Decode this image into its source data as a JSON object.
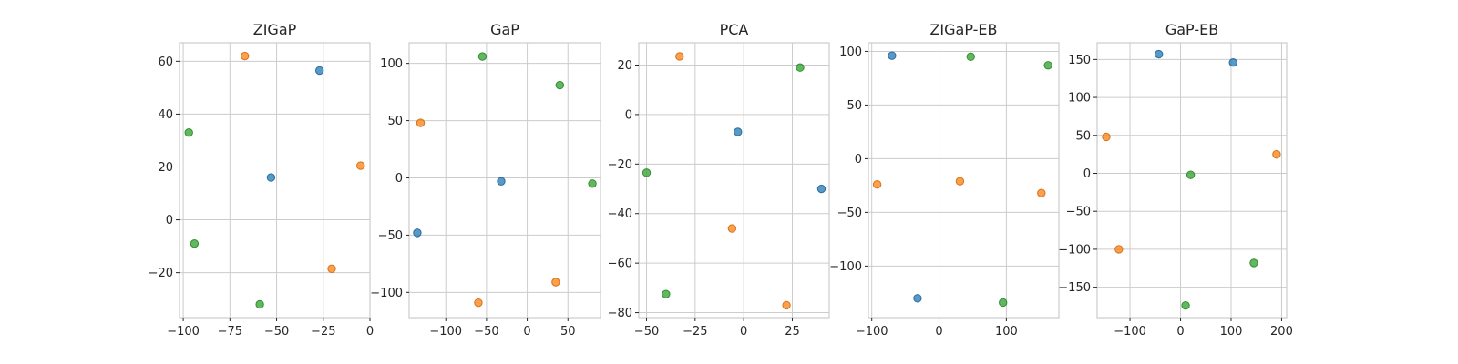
{
  "chart_data": [
    {
      "type": "scatter",
      "title": "ZIGaP",
      "xlabel": "",
      "ylabel": "",
      "xlim": [
        -102,
        0
      ],
      "ylim": [
        -37,
        67
      ],
      "xticks": [
        -100,
        -75,
        -50,
        -25,
        0
      ],
      "yticks": [
        -20,
        0,
        20,
        40,
        60
      ],
      "grid": true,
      "points": [
        {
          "cluster": 0,
          "x": -27,
          "y": 56.5
        },
        {
          "cluster": 0,
          "x": -53,
          "y": 16
        },
        {
          "cluster": 1,
          "x": -67,
          "y": 62
        },
        {
          "cluster": 1,
          "x": -5,
          "y": 20.5
        },
        {
          "cluster": 1,
          "x": -20.5,
          "y": -18.5
        },
        {
          "cluster": 2,
          "x": -97,
          "y": 33
        },
        {
          "cluster": 2,
          "x": -94,
          "y": -9
        },
        {
          "cluster": 2,
          "x": -59,
          "y": -32
        }
      ]
    },
    {
      "type": "scatter",
      "title": "GaP",
      "xlabel": "",
      "ylabel": "",
      "xlim": [
        -145,
        90
      ],
      "ylim": [
        -122,
        118
      ],
      "xticks": [
        -100,
        -50,
        0,
        50
      ],
      "yticks": [
        -100,
        -50,
        0,
        50,
        100
      ],
      "grid": true,
      "points": [
        {
          "cluster": 0,
          "x": -32,
          "y": -3
        },
        {
          "cluster": 0,
          "x": -135,
          "y": -48
        },
        {
          "cluster": 1,
          "x": -131,
          "y": 48
        },
        {
          "cluster": 1,
          "x": 35,
          "y": -91
        },
        {
          "cluster": 1,
          "x": -60,
          "y": -109
        },
        {
          "cluster": 2,
          "x": -55,
          "y": 106
        },
        {
          "cluster": 2,
          "x": 40,
          "y": 81
        },
        {
          "cluster": 2,
          "x": 80,
          "y": -5
        }
      ]
    },
    {
      "type": "scatter",
      "title": "PCA",
      "xlabel": "",
      "ylabel": "",
      "xlim": [
        -54,
        44
      ],
      "ylim": [
        -82,
        29
      ],
      "xticks": [
        -50,
        -25,
        0,
        25
      ],
      "yticks": [
        -80,
        -60,
        -40,
        -20,
        0,
        20
      ],
      "grid": true,
      "points": [
        {
          "cluster": 0,
          "x": -3,
          "y": -7
        },
        {
          "cluster": 0,
          "x": 40,
          "y": -30
        },
        {
          "cluster": 1,
          "x": -33,
          "y": 23.5
        },
        {
          "cluster": 1,
          "x": -6,
          "y": -46
        },
        {
          "cluster": 1,
          "x": 22,
          "y": -77
        },
        {
          "cluster": 2,
          "x": 29,
          "y": 19
        },
        {
          "cluster": 2,
          "x": -50,
          "y": -23.5
        },
        {
          "cluster": 2,
          "x": -40,
          "y": -72.5
        }
      ]
    },
    {
      "type": "scatter",
      "title": "ZIGaP-EB",
      "xlabel": "",
      "ylabel": "",
      "xlim": [
        -105,
        178
      ],
      "ylim": [
        -148,
        108
      ],
      "xticks": [
        -100,
        0,
        100
      ],
      "yticks": [
        -100,
        -50,
        0,
        50,
        100
      ],
      "grid": true,
      "points": [
        {
          "cluster": 0,
          "x": -70,
          "y": 96
        },
        {
          "cluster": 0,
          "x": -32,
          "y": -130
        },
        {
          "cluster": 1,
          "x": -92,
          "y": -24
        },
        {
          "cluster": 1,
          "x": 31,
          "y": -21
        },
        {
          "cluster": 1,
          "x": 152,
          "y": -32
        },
        {
          "cluster": 2,
          "x": 47,
          "y": 95
        },
        {
          "cluster": 2,
          "x": 162,
          "y": 87
        },
        {
          "cluster": 2,
          "x": 95,
          "y": -134
        }
      ]
    },
    {
      "type": "scatter",
      "title": "GaP-EB",
      "xlabel": "",
      "ylabel": "",
      "xlim": [
        -165,
        210
      ],
      "ylim": [
        -190,
        172
      ],
      "xticks": [
        -100,
        0,
        100,
        200
      ],
      "yticks": [
        -150,
        -100,
        -50,
        0,
        50,
        100,
        150
      ],
      "grid": true,
      "points": [
        {
          "cluster": 0,
          "x": -43,
          "y": 157
        },
        {
          "cluster": 0,
          "x": 104,
          "y": 146
        },
        {
          "cluster": 1,
          "x": -147,
          "y": 48
        },
        {
          "cluster": 1,
          "x": 190,
          "y": 25
        },
        {
          "cluster": 1,
          "x": -122,
          "y": -100
        },
        {
          "cluster": 2,
          "x": 20,
          "y": -2
        },
        {
          "cluster": 2,
          "x": 145,
          "y": -118
        },
        {
          "cluster": 2,
          "x": 10,
          "y": -174
        }
      ]
    }
  ],
  "colors": {
    "cluster_fill": [
      "#1f77b4",
      "#ff7f0e",
      "#2ca02c"
    ],
    "grid": "#cccccc",
    "text": "#262626"
  }
}
